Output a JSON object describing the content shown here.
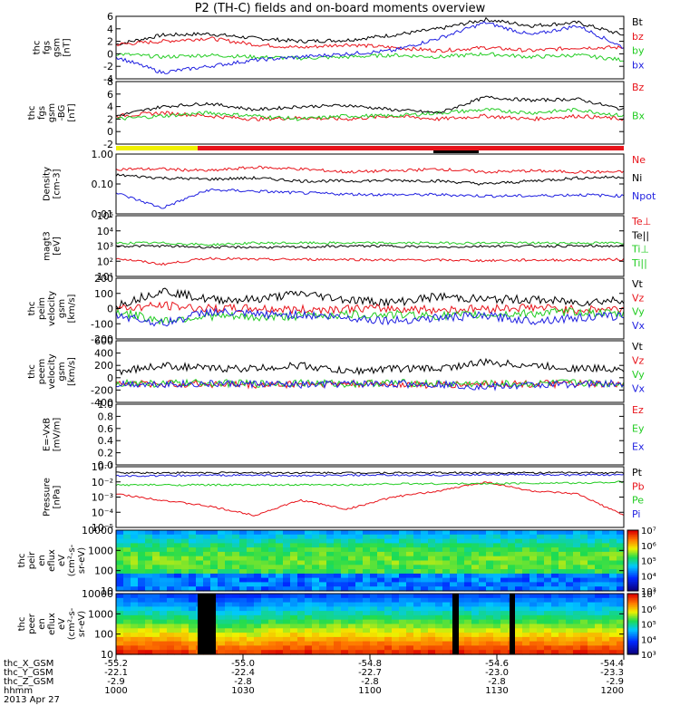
{
  "title": "P2 (TH-C) fields and on-board moments overview",
  "colors": {
    "black": "#000000",
    "red": "#e8141b",
    "green": "#22cc22",
    "blue": "#1f1fe0",
    "yellow": "#f0f000"
  },
  "panels": [
    {
      "id": "fgs-gsm",
      "ylabel": [
        "thc",
        "fgs",
        "gsm",
        "[nT]"
      ],
      "yticks": [
        "-4",
        "-2",
        "0",
        "2",
        "4",
        "6"
      ],
      "legend": [
        {
          "label": "Bt",
          "color": "black"
        },
        {
          "label": "bz",
          "color": "red"
        },
        {
          "label": "by",
          "color": "green"
        },
        {
          "label": "bx",
          "color": "blue"
        }
      ]
    },
    {
      "id": "fgs-gse",
      "ylabel": [
        "thc",
        "fgs",
        "gsm",
        "-BG",
        "[nT]"
      ],
      "yticks": [
        "-2",
        "0",
        "2",
        "4",
        "6",
        "8"
      ],
      "legend": [
        {
          "label": "Bz",
          "color": "red"
        },
        {
          "label": "Bx",
          "color": "green"
        }
      ]
    },
    {
      "id": "density",
      "ylabel": [
        "Density",
        "[cm-3]"
      ],
      "yticks": [
        "0.01",
        "0.10",
        "1.00"
      ],
      "legend": [
        {
          "label": "Ne",
          "color": "red"
        },
        {
          "label": "Ni",
          "color": "black"
        },
        {
          "label": "Npot",
          "color": "blue"
        }
      ]
    },
    {
      "id": "temperature",
      "ylabel": [
        "magt3",
        "[eV]"
      ],
      "yticks": [
        "10¹",
        "10²",
        "10³",
        "10⁴",
        "10⁵"
      ],
      "legend": [
        {
          "label": "Te⊥",
          "color": "red"
        },
        {
          "label": "Te||",
          "color": "black"
        },
        {
          "label": "Ti⊥",
          "color": "green"
        },
        {
          "label": "Ti||",
          "color": "green"
        }
      ]
    },
    {
      "id": "peim-velocity",
      "ylabel": [
        "thc",
        "peim",
        "velocity",
        "gsm",
        "[km/s]"
      ],
      "yticks": [
        "-200",
        "-100",
        "0",
        "100",
        "200"
      ],
      "legend": [
        {
          "label": "Vt",
          "color": "black"
        },
        {
          "label": "Vz",
          "color": "red"
        },
        {
          "label": "Vy",
          "color": "green"
        },
        {
          "label": "Vx",
          "color": "blue"
        }
      ]
    },
    {
      "id": "peem-velocity",
      "ylabel": [
        "thc",
        "peem",
        "velocity",
        "gsm",
        "[km/s]"
      ],
      "yticks": [
        "-400",
        "-200",
        "0",
        "200",
        "400",
        "600"
      ],
      "legend": [
        {
          "label": "Vt",
          "color": "black"
        },
        {
          "label": "Vz",
          "color": "red"
        },
        {
          "label": "Vy",
          "color": "green"
        },
        {
          "label": "Vx",
          "color": "blue"
        }
      ]
    },
    {
      "id": "efield",
      "ylabel": [
        "E=-VxB",
        "[mV/m]"
      ],
      "yticks": [
        "0.0",
        "0.2",
        "0.4",
        "0.6",
        "0.8",
        "1.0"
      ],
      "legend": [
        {
          "label": "Ez",
          "color": "red"
        },
        {
          "label": "Ey",
          "color": "green"
        },
        {
          "label": "Ex",
          "color": "blue"
        }
      ]
    },
    {
      "id": "pressure",
      "ylabel": [
        "Pressure",
        "[nPa]"
      ],
      "yticks": [
        "10⁻⁵",
        "10⁻⁴",
        "10⁻³",
        "10⁻²",
        "10⁻¹"
      ],
      "legend": [
        {
          "label": "Pt",
          "color": "black"
        },
        {
          "label": "Pb",
          "color": "red"
        },
        {
          "label": "Pe",
          "color": "green"
        },
        {
          "label": "Pi",
          "color": "blue"
        }
      ]
    },
    {
      "id": "peir-spec",
      "ylabel": [
        "thc",
        "peir",
        "en",
        "eflux",
        "eV",
        "(cm²-s-",
        "sr-eV)"
      ],
      "yticks": [
        "10",
        "100",
        "1000",
        "10000"
      ],
      "cbar": [
        "10³",
        "10⁴",
        "10⁵",
        "10⁶",
        "10⁷"
      ]
    },
    {
      "id": "peer-spec",
      "ylabel": [
        "thc",
        "peer",
        "en",
        "eflux",
        "eV",
        "(cm²-s-",
        "sr-eV)"
      ],
      "yticks": [
        "10",
        "100",
        "1000",
        "10000"
      ],
      "cbar": [
        "10³",
        "10⁴",
        "10⁵",
        "10⁶",
        "10⁷"
      ]
    }
  ],
  "xaxis": {
    "rows": [
      {
        "label": "thc_X_GSM",
        "values": [
          "-55.2",
          "-55.0",
          "-54.8",
          "-54.6",
          "-54.4"
        ]
      },
      {
        "label": "thc_Y_GSM",
        "values": [
          "-22.1",
          "-22.4",
          "-22.7",
          "-23.0",
          "-23.3"
        ]
      },
      {
        "label": "thc_Z_GSM",
        "values": [
          "-2.9",
          "-2.8",
          "-2.8",
          "-2.8",
          "-2.9"
        ]
      },
      {
        "label": "hhmm",
        "values": [
          "1000",
          "1030",
          "1100",
          "1130",
          "1200"
        ]
      }
    ],
    "date": "2013 Apr 27"
  },
  "chart_data": [
    {
      "type": "line",
      "title": "P2 (TH-C) fields and on-board moments overview",
      "x_labels": [
        "1000",
        "1030",
        "1100",
        "1130",
        "1200"
      ],
      "series": [
        {
          "name": "Bt",
          "values": [
            2,
            2,
            3,
            5,
            3
          ]
        },
        {
          "name": "bz",
          "values": [
            2,
            1,
            2,
            1,
            1
          ]
        },
        {
          "name": "by",
          "values": [
            0,
            0,
            -0.5,
            0,
            0
          ]
        },
        {
          "name": "bx",
          "values": [
            0,
            -1,
            0,
            4,
            2
          ]
        }
      ],
      "ylim": [
        -4,
        6
      ]
    },
    {
      "type": "line",
      "x_labels": [
        "1000",
        "1030",
        "1100",
        "1130",
        "1200"
      ],
      "series": [
        {
          "name": "Bz",
          "values": [
            1,
            1,
            1,
            1,
            1
          ]
        },
        {
          "name": "Bx",
          "values": [
            1,
            1,
            1,
            2,
            1
          ]
        }
      ],
      "ylim": [
        -2,
        8
      ]
    },
    {
      "type": "line",
      "x_labels": [
        "1000",
        "1030",
        "1100",
        "1130",
        "1200"
      ],
      "series": [
        {
          "name": "Ne",
          "values": [
            0.25,
            0.25,
            0.25,
            0.25,
            0.25
          ]
        },
        {
          "name": "Ni",
          "values": [
            0.15,
            0.15,
            0.12,
            0.12,
            0.2
          ]
        },
        {
          "name": "Npot",
          "values": [
            0.07,
            0.08,
            0.06,
            0.05,
            0.06
          ]
        }
      ],
      "ylim": [
        0.01,
        1
      ],
      "log": true
    },
    {
      "type": "line",
      "x_labels": [
        "1000",
        "1030",
        "1100",
        "1130",
        "1200"
      ],
      "series": [
        {
          "name": "Te⊥",
          "values": [
            100,
            150,
            100,
            100,
            150
          ]
        },
        {
          "name": "Ti⊥",
          "values": [
            1000,
            1000,
            1000,
            1000,
            1000
          ]
        }
      ],
      "ylim": [
        10,
        100000
      ],
      "log": true
    },
    {
      "type": "line",
      "x_labels": [
        "1000",
        "1030",
        "1100",
        "1130",
        "1200"
      ],
      "series": [
        {
          "name": "Vt",
          "values": [
            50,
            50,
            100,
            80,
            80
          ]
        },
        {
          "name": "Vz",
          "values": [
            0,
            20,
            0,
            0,
            20
          ]
        },
        {
          "name": "Vy",
          "values": [
            -40,
            -50,
            -50,
            -40,
            -30
          ]
        },
        {
          "name": "Vx",
          "values": [
            -50,
            0,
            -50,
            -60,
            -40
          ]
        }
      ],
      "ylim": [
        -200,
        200
      ]
    },
    {
      "type": "line",
      "x_labels": [
        "1000",
        "1030",
        "1100",
        "1130",
        "1200"
      ],
      "series": [
        {
          "name": "Vt",
          "values": [
            100,
            150,
            200,
            300,
            250
          ]
        },
        {
          "name": "Vz",
          "values": [
            -50,
            -50,
            -50,
            -50,
            -50
          ]
        },
        {
          "name": "Vy",
          "values": [
            -30,
            -50,
            -50,
            -50,
            -50
          ]
        },
        {
          "name": "Vx",
          "values": [
            -60,
            -40,
            -50,
            -100,
            -80
          ]
        }
      ],
      "ylim": [
        -400,
        600
      ]
    },
    {
      "type": "line",
      "x_labels": [
        "1000",
        "1030",
        "1100",
        "1130",
        "1200"
      ],
      "series": [],
      "ylim": [
        0,
        1
      ]
    },
    {
      "type": "line",
      "x_labels": [
        "1000",
        "1030",
        "1100",
        "1130",
        "1200"
      ],
      "series": [
        {
          "name": "Pt",
          "values": [
            0.02,
            0.02,
            0.02,
            0.02,
            0.02
          ]
        },
        {
          "name": "Pb",
          "values": [
            0.001,
            0.0005,
            0.0002,
            0.01,
            0.005
          ]
        },
        {
          "name": "Pe",
          "values": [
            0.004,
            0.004,
            0.004,
            0.004,
            0.004
          ]
        },
        {
          "name": "Pi",
          "values": [
            0.015,
            0.015,
            0.015,
            0.015,
            0.015
          ]
        }
      ],
      "ylim": [
        1e-05,
        0.1
      ],
      "log": true
    },
    {
      "type": "heatmap",
      "x_labels": [
        "1000",
        "1030",
        "1100",
        "1130",
        "1200"
      ],
      "y_range": [
        10,
        10000
      ],
      "clim": [
        1000,
        10000000
      ]
    },
    {
      "type": "heatmap",
      "x_labels": [
        "1000",
        "1030",
        "1100",
        "1130",
        "1200"
      ],
      "y_range": [
        10,
        10000
      ],
      "clim": [
        1000,
        10000000
      ]
    }
  ]
}
